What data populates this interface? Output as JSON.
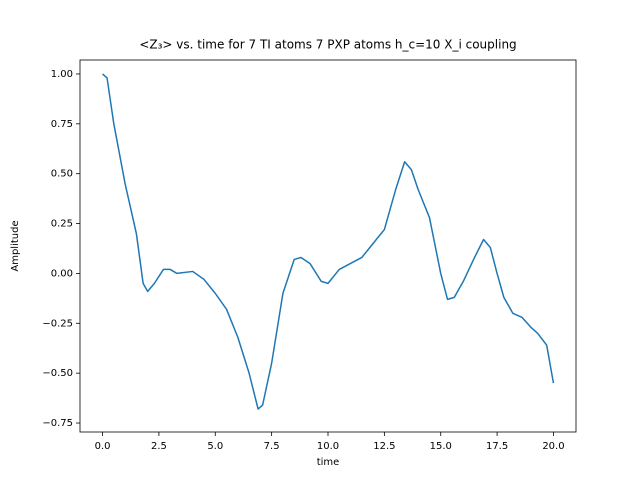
{
  "chart_data": {
    "type": "line",
    "title": "<Z₃>  vs. time for 7 TI atoms 7 PXP atoms h_c=10 X_i coupling",
    "xlabel": "time",
    "ylabel": "Amplitude",
    "x": [
      0,
      0.2,
      0.5,
      1.0,
      1.5,
      1.8,
      2.0,
      2.3,
      2.7,
      3.0,
      3.3,
      4.0,
      4.5,
      5.0,
      5.5,
      6.0,
      6.5,
      6.9,
      7.1,
      7.5,
      8.0,
      8.5,
      8.8,
      9.2,
      9.7,
      10.0,
      10.5,
      11.0,
      11.5,
      12.0,
      12.5,
      13.0,
      13.4,
      13.7,
      14.0,
      14.5,
      15.0,
      15.3,
      15.6,
      16.0,
      16.5,
      16.9,
      17.2,
      17.5,
      17.8,
      18.2,
      18.6,
      19.0,
      19.3,
      19.7,
      20.0
    ],
    "series": [
      {
        "color": "#1f77b4",
        "values": [
          1.0,
          0.98,
          0.75,
          0.45,
          0.2,
          -0.05,
          -0.09,
          -0.05,
          0.02,
          0.02,
          0.0,
          0.01,
          -0.03,
          -0.1,
          -0.18,
          -0.32,
          -0.5,
          -0.68,
          -0.66,
          -0.45,
          -0.1,
          0.07,
          0.08,
          0.05,
          -0.04,
          -0.05,
          0.02,
          0.05,
          0.08,
          0.15,
          0.22,
          0.42,
          0.56,
          0.52,
          0.42,
          0.28,
          0.0,
          -0.13,
          -0.12,
          -0.04,
          0.08,
          0.17,
          0.13,
          0.0,
          -0.12,
          -0.2,
          -0.22,
          -0.27,
          -0.3,
          -0.36,
          -0.55
        ]
      }
    ],
    "xlim": [
      -1,
      21
    ],
    "ylim": [
      -0.795,
      1.07
    ],
    "xticks": [
      {
        "value": 0,
        "label": "0.0"
      },
      {
        "value": 2.5,
        "label": "2.5"
      },
      {
        "value": 5,
        "label": "5.0"
      },
      {
        "value": 7.5,
        "label": "7.5"
      },
      {
        "value": 10,
        "label": "10.0"
      },
      {
        "value": 12.5,
        "label": "12.5"
      },
      {
        "value": 15,
        "label": "15.0"
      },
      {
        "value": 17.5,
        "label": "17.5"
      },
      {
        "value": 20,
        "label": "20.0"
      }
    ],
    "yticks": [
      {
        "value": -0.75,
        "label": "−0.75"
      },
      {
        "value": -0.5,
        "label": "−0.50"
      },
      {
        "value": -0.25,
        "label": "−0.25"
      },
      {
        "value": 0,
        "label": "0.00"
      },
      {
        "value": 0.25,
        "label": "0.25"
      },
      {
        "value": 0.5,
        "label": "0.50"
      },
      {
        "value": 0.75,
        "label": "0.75"
      },
      {
        "value": 1,
        "label": "1.00"
      }
    ]
  }
}
